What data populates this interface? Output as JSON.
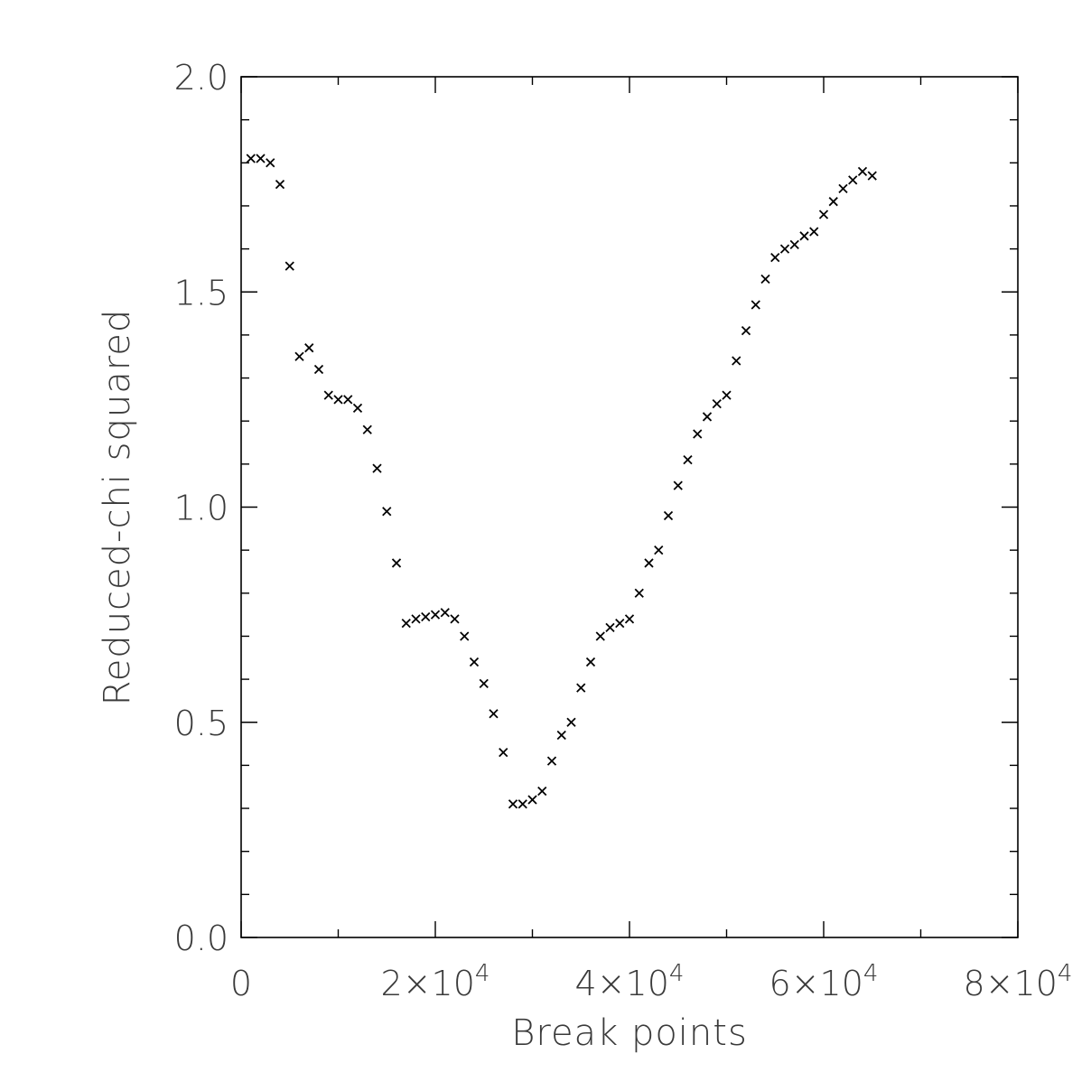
{
  "chart_data": {
    "type": "scatter",
    "marker": "x",
    "xlabel": "Break points",
    "ylabel": "Reduced-chi squared",
    "xlim": [
      0,
      80000
    ],
    "ylim": [
      0,
      2.0
    ],
    "x_ticks": [
      {
        "value": 0,
        "label": "0"
      },
      {
        "value": 20000,
        "label": "2×10",
        "exp": "4"
      },
      {
        "value": 40000,
        "label": "4×10",
        "exp": "4"
      },
      {
        "value": 60000,
        "label": "6×10",
        "exp": "4"
      },
      {
        "value": 80000,
        "label": "8×10",
        "exp": "4"
      }
    ],
    "y_ticks": [
      {
        "value": 0.0,
        "label": "0.0"
      },
      {
        "value": 0.5,
        "label": "0.5"
      },
      {
        "value": 1.0,
        "label": "1.0"
      },
      {
        "value": 1.5,
        "label": "1.5"
      },
      {
        "value": 2.0,
        "label": "2.0"
      }
    ],
    "x_minor_step": 10000,
    "y_minor_step": 0.1,
    "grid": false,
    "points": [
      [
        1000,
        1.81
      ],
      [
        2000,
        1.81
      ],
      [
        3000,
        1.8
      ],
      [
        4000,
        1.75
      ],
      [
        5000,
        1.56
      ],
      [
        6000,
        1.35
      ],
      [
        7000,
        1.37
      ],
      [
        8000,
        1.32
      ],
      [
        9000,
        1.26
      ],
      [
        10000,
        1.25
      ],
      [
        11000,
        1.25
      ],
      [
        12000,
        1.23
      ],
      [
        13000,
        1.18
      ],
      [
        14000,
        1.09
      ],
      [
        15000,
        0.99
      ],
      [
        16000,
        0.87
      ],
      [
        17000,
        0.73
      ],
      [
        18000,
        0.74
      ],
      [
        19000,
        0.745
      ],
      [
        20000,
        0.75
      ],
      [
        21000,
        0.755
      ],
      [
        22000,
        0.74
      ],
      [
        23000,
        0.7
      ],
      [
        24000,
        0.64
      ],
      [
        25000,
        0.59
      ],
      [
        26000,
        0.52
      ],
      [
        27000,
        0.43
      ],
      [
        28000,
        0.31
      ],
      [
        29000,
        0.31
      ],
      [
        30000,
        0.32
      ],
      [
        31000,
        0.34
      ],
      [
        32000,
        0.41
      ],
      [
        33000,
        0.47
      ],
      [
        34000,
        0.5
      ],
      [
        35000,
        0.58
      ],
      [
        36000,
        0.64
      ],
      [
        37000,
        0.7
      ],
      [
        38000,
        0.72
      ],
      [
        39000,
        0.73
      ],
      [
        40000,
        0.74
      ],
      [
        41000,
        0.8
      ],
      [
        42000,
        0.87
      ],
      [
        43000,
        0.9
      ],
      [
        44000,
        0.98
      ],
      [
        45000,
        1.05
      ],
      [
        46000,
        1.11
      ],
      [
        47000,
        1.17
      ],
      [
        48000,
        1.21
      ],
      [
        49000,
        1.24
      ],
      [
        50000,
        1.26
      ],
      [
        51000,
        1.34
      ],
      [
        52000,
        1.41
      ],
      [
        53000,
        1.47
      ],
      [
        54000,
        1.53
      ],
      [
        55000,
        1.58
      ],
      [
        56000,
        1.6
      ],
      [
        57000,
        1.61
      ],
      [
        58000,
        1.63
      ],
      [
        59000,
        1.64
      ],
      [
        60000,
        1.68
      ],
      [
        61000,
        1.71
      ],
      [
        62000,
        1.74
      ],
      [
        63000,
        1.76
      ],
      [
        64000,
        1.78
      ],
      [
        65000,
        1.77
      ]
    ]
  }
}
